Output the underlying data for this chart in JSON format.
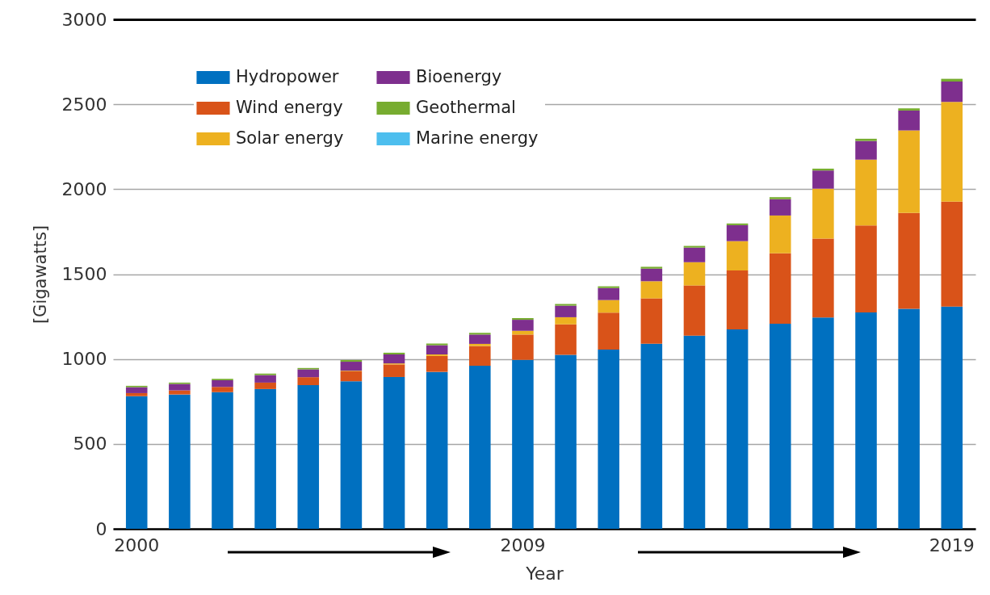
{
  "chart_data": {
    "type": "bar",
    "xlabel": "Year",
    "ylabel": "[Gigawatts]",
    "categories": [
      "2000",
      null,
      null,
      null,
      null,
      null,
      null,
      null,
      null,
      "2009",
      null,
      null,
      null,
      null,
      null,
      null,
      null,
      null,
      null,
      "2019"
    ],
    "stacked": true,
    "ylim": [
      0,
      3000
    ],
    "yticks": [
      0,
      500,
      1000,
      1500,
      2000,
      2500,
      3000
    ],
    "grid": "y",
    "legend": "top left",
    "series": [
      {
        "name": "Hydropower",
        "color": "#0070c0",
        "values": [
          781,
          791,
          805,
          823,
          846,
          869,
          894,
          924,
          960,
          995,
          1024,
          1056,
          1090,
          1138,
          1174,
          1208,
          1244,
          1274,
          1295,
          1309
        ]
      },
      {
        "name": "Wind energy",
        "color": "#d95319",
        "values": [
          18,
          24,
          30,
          38,
          47,
          58,
          74,
          94,
          116,
          149,
          180,
          217,
          267,
          295,
          347,
          415,
          465,
          512,
          565,
          618
        ]
      },
      {
        "name": "Solar energy",
        "color": "#edb120",
        "values": [
          null,
          null,
          null,
          null,
          null,
          4,
          6,
          9,
          13,
          22,
          42,
          74,
          101,
          137,
          173,
          222,
          294,
          388,
          486,
          587
        ]
      },
      {
        "name": "Bioenergy",
        "color": "#7e2f8e",
        "values": [
          35,
          38,
          40,
          44,
          46,
          53,
          53,
          54,
          55,
          65,
          68,
          71,
          74,
          86,
          94,
          96,
          107,
          110,
          117,
          120
        ]
      },
      {
        "name": "Geothermal",
        "color": "#77ac30",
        "values": [
          8,
          8,
          8,
          9,
          8,
          10,
          10,
          10,
          10,
          10,
          10,
          10,
          11,
          10,
          10,
          12,
          11,
          13,
          13,
          16
        ]
      },
      {
        "name": "Marine energy",
        "color": "#4dbeee",
        "values": [
          null,
          null,
          null,
          null,
          null,
          null,
          null,
          null,
          null,
          null,
          null,
          null,
          null,
          null,
          null,
          null,
          null,
          null,
          null,
          null
        ]
      }
    ]
  }
}
